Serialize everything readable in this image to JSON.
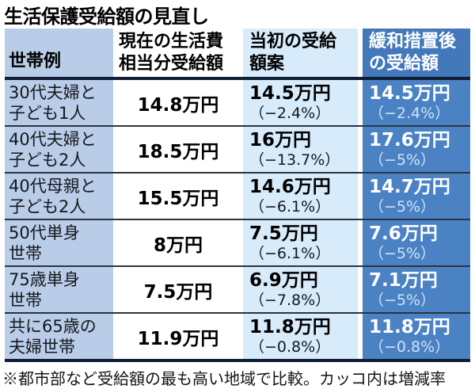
{
  "chart_data": {
    "type": "table",
    "title": "生活保護受給額の見直し",
    "footnote": "※都市部など受給額の最も高い地域で比較。カッコ内は増減率",
    "unit": "万円",
    "columns": [
      {
        "label": "世帯例"
      },
      {
        "label": "現在の生活費\n相当分受給額"
      },
      {
        "label": "当初の受給\n額案"
      },
      {
        "label": "緩和措置後\nの受給額"
      }
    ],
    "rows": [
      {
        "household": "30代夫婦と\n子ども1人",
        "current_amount": "14.8万円",
        "current_value": 14.8,
        "initial_amount": "14.5万円",
        "initial_value": 14.5,
        "initial_change_pct": -2.4,
        "initial_change_label": "（−2.4%）",
        "relaxed_amount": "14.5万円",
        "relaxed_value": 14.5,
        "relaxed_change_pct": -2.4,
        "relaxed_change_label": "（−2.4%）"
      },
      {
        "household": "40代夫婦と\n子ども2人",
        "current_amount": "18.5万円",
        "current_value": 18.5,
        "initial_amount": "16万円",
        "initial_value": 16,
        "initial_change_pct": -13.7,
        "initial_change_label": "（−13.7%）",
        "relaxed_amount": "17.6万円",
        "relaxed_value": 17.6,
        "relaxed_change_pct": -5,
        "relaxed_change_label": "（−5%）"
      },
      {
        "household": "40代母親と\n子ども2人",
        "current_amount": "15.5万円",
        "current_value": 15.5,
        "initial_amount": "14.6万円",
        "initial_value": 14.6,
        "initial_change_pct": -6.1,
        "initial_change_label": "（−6.1%）",
        "relaxed_amount": "14.7万円",
        "relaxed_value": 14.7,
        "relaxed_change_pct": -5,
        "relaxed_change_label": "（−5%）"
      },
      {
        "household": "50代単身\n世帯",
        "current_amount": "8万円",
        "current_value": 8,
        "initial_amount": "7.5万円",
        "initial_value": 7.5,
        "initial_change_pct": -6.1,
        "initial_change_label": "（−6.1%）",
        "relaxed_amount": "7.6万円",
        "relaxed_value": 7.6,
        "relaxed_change_pct": -5,
        "relaxed_change_label": "（−5%）"
      },
      {
        "household": "75歳単身\n世帯",
        "current_amount": "7.5万円",
        "current_value": 7.5,
        "initial_amount": "6.9万円",
        "initial_value": 6.9,
        "initial_change_pct": -7.8,
        "initial_change_label": "（−7.8%）",
        "relaxed_amount": "7.1万円",
        "relaxed_value": 7.1,
        "relaxed_change_pct": -5,
        "relaxed_change_label": "（−5%）"
      },
      {
        "household": "共に65歳の\n夫婦世帯",
        "current_amount": "11.9万円",
        "current_value": 11.9,
        "initial_amount": "11.8万円",
        "initial_value": 11.8,
        "initial_change_pct": -0.8,
        "initial_change_label": "（−0.8%）",
        "relaxed_amount": "11.8万円",
        "relaxed_value": 11.8,
        "relaxed_change_pct": -0.8,
        "relaxed_change_label": "（−0.8%）"
      }
    ],
    "layout": {
      "grid": "4 columns × 6 rows",
      "legend_position": "none"
    }
  },
  "colors": {
    "household_column_bg": "#b9cce8",
    "initial_column_bg": "#d7ebfa",
    "relaxed_column_bg": "#4a82c4",
    "relaxed_header_bg": "#4378bb",
    "heavy_rule": "#101f36",
    "row_separator": "#2b3442",
    "relaxed_pct_text": "#cfe3f5"
  }
}
